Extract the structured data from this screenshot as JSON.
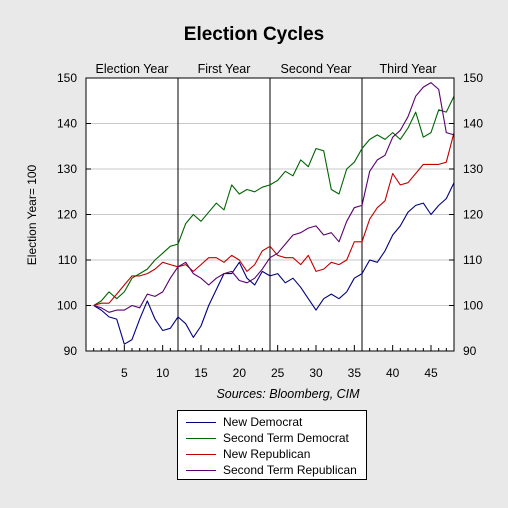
{
  "chart_data": {
    "type": "line",
    "title": "Election Cycles",
    "subtitle": "",
    "ylabel": "Election Year= 100",
    "xlabel": "",
    "source": "Sources: Bloomberg, CIM",
    "xlim": [
      0,
      48
    ],
    "ylim": [
      90,
      150
    ],
    "xticks_major": [
      5,
      10,
      15,
      20,
      25,
      30,
      35,
      40,
      45
    ],
    "yticks": [
      90,
      100,
      110,
      120,
      130,
      140,
      150
    ],
    "right_axis": true,
    "grid": "horizontal",
    "dividers": [
      12,
      24,
      36
    ],
    "period_labels": [
      "Election Year",
      "First Year",
      "Second Year",
      "Third Year"
    ],
    "legend_position": "bottom",
    "x": [
      1,
      2,
      3,
      4,
      5,
      6,
      7,
      8,
      9,
      10,
      11,
      12,
      13,
      14,
      15,
      16,
      17,
      18,
      19,
      20,
      21,
      22,
      23,
      24,
      25,
      26,
      27,
      28,
      29,
      30,
      31,
      32,
      33,
      34,
      35,
      36,
      37,
      38,
      39,
      40,
      41,
      42,
      43,
      44,
      45,
      46,
      47,
      48
    ],
    "series": [
      {
        "name": "New Democrat",
        "color": "#000080",
        "values": [
          100,
          99,
          97.5,
          97,
          91.5,
          92.5,
          97,
          101,
          97,
          94.5,
          95,
          97.5,
          96,
          93,
          95.5,
          100,
          103.5,
          107,
          107,
          109.5,
          106,
          104.5,
          107.5,
          106.5,
          107,
          105,
          106,
          104,
          101.5,
          99,
          101.5,
          102.5,
          101.5,
          103,
          106,
          107,
          110,
          109.5,
          112,
          115.5,
          117.5,
          120.5,
          122,
          122.5,
          120,
          122,
          123.5,
          127
        ]
      },
      {
        "name": "Second Term Democrat",
        "color": "#006400",
        "values": [
          100,
          101,
          103,
          101.5,
          103,
          106,
          107,
          108,
          110,
          111.5,
          113,
          113.5,
          118,
          120,
          118.5,
          120.5,
          122.5,
          121,
          126.5,
          124.5,
          125.5,
          125,
          126,
          126.5,
          127.5,
          129.5,
          128.5,
          132,
          130.5,
          134.5,
          134,
          125.5,
          124.5,
          130,
          131.5,
          134.5,
          136.5,
          137.5,
          136.5,
          138,
          136.5,
          139,
          142.5,
          137,
          138,
          143,
          142.5,
          146
        ]
      },
      {
        "name": "New Republican",
        "color": "#c00000",
        "values": [
          100,
          100.5,
          100.5,
          102.5,
          104.5,
          106.5,
          106.5,
          107,
          108,
          109.5,
          109,
          108.5,
          109,
          107.5,
          109,
          110.5,
          110.5,
          109.5,
          111,
          110,
          107.5,
          109,
          112,
          113,
          111,
          110.5,
          110.5,
          109,
          111,
          107.5,
          108,
          109.5,
          109,
          110,
          114,
          114,
          119,
          121.5,
          123,
          129,
          126.5,
          127,
          129,
          131,
          131,
          131,
          131.5,
          138
        ]
      },
      {
        "name": "Second Term Republican",
        "color": "#5a0070",
        "values": [
          100,
          99.5,
          98.5,
          99,
          99,
          100,
          99.5,
          102.5,
          102,
          103,
          106,
          108.5,
          109.5,
          107,
          106,
          104.5,
          106,
          107,
          107.5,
          105.5,
          105,
          106,
          108,
          110.5,
          111.5,
          113.5,
          115.5,
          116,
          117,
          117.5,
          115.5,
          116,
          114,
          118.5,
          121.5,
          122,
          129.5,
          132,
          133,
          137,
          138.5,
          141.5,
          146,
          148,
          149,
          147.5,
          138,
          137.5
        ]
      }
    ]
  }
}
